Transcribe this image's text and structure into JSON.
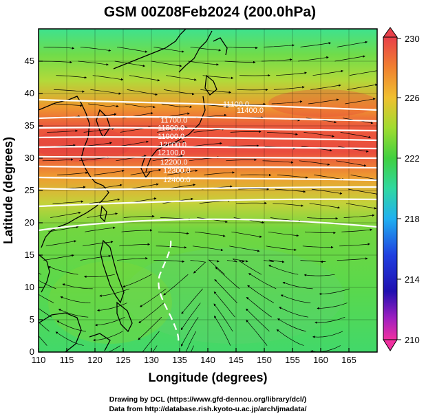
{
  "map": {
    "title": "GSM 00Z08Feb2024 (200.0hPa)",
    "xlabel": "Longitude (degrees)",
    "ylabel": "Latitude (degrees)",
    "x_ticks": [
      "110",
      "115",
      "120",
      "125",
      "130",
      "135",
      "140",
      "145",
      "150",
      "155",
      "160",
      "165"
    ],
    "x_tick_values": [
      110,
      115,
      120,
      125,
      130,
      135,
      140,
      145,
      150,
      155,
      160,
      165
    ],
    "y_ticks": [
      "0",
      "5",
      "10",
      "15",
      "20",
      "25",
      "30",
      "35",
      "40",
      "45"
    ],
    "y_tick_values": [
      0,
      5,
      10,
      15,
      20,
      25,
      30,
      35,
      40,
      45
    ],
    "xlim": [
      110,
      170
    ],
    "ylim": [
      0,
      50
    ],
    "contour_labels": [
      {
        "text": "11100.0",
        "lon": 145,
        "lat": 38.0
      },
      {
        "text": "11400.0",
        "lon": 147.5,
        "lat": 37.0
      },
      {
        "text": "11700.0",
        "lon": 134,
        "lat": 35.5
      },
      {
        "text": "11800.0",
        "lon": 133.5,
        "lat": 34.3
      },
      {
        "text": "11900.0",
        "lon": 133.5,
        "lat": 33.0
      },
      {
        "text": "12000.0",
        "lon": 133.8,
        "lat": 31.7
      },
      {
        "text": "12100.0",
        "lon": 133.5,
        "lat": 30.5
      },
      {
        "text": "12200.0",
        "lon": 134.0,
        "lat": 29.0
      },
      {
        "text": "12300.0",
        "lon": 134.5,
        "lat": 27.7
      },
      {
        "text": "12400.0",
        "lon": 134.5,
        "lat": 26.3
      }
    ]
  },
  "colorbar": {
    "tick_labels": [
      "230",
      "226",
      "222",
      "218",
      "214",
      "210"
    ],
    "tick_values": [
      230,
      226,
      222,
      218,
      214,
      210
    ],
    "min": 210,
    "max": 230
  },
  "footer": {
    "line1": "Drawing by DCL (https://www.gfd-dennou.org/library/dcl/)",
    "line2": "Data from http://database.rish.kyoto-u.ac.jp/arch/jmadata/"
  },
  "colors": {
    "jet_core": "#e84a3a",
    "warm": "#f0a030",
    "mid": "#8fd640",
    "cool": "#28dca0",
    "contour": "#ffffff",
    "coast": "#000000"
  }
}
